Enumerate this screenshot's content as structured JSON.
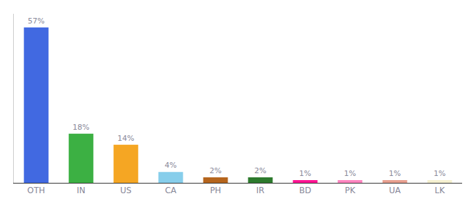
{
  "chart_data": {
    "type": "bar",
    "categories": [
      "OTH",
      "IN",
      "US",
      "CA",
      "PH",
      "IR",
      "BD",
      "PK",
      "UA",
      "LK"
    ],
    "values": [
      57,
      18,
      14,
      4,
      2,
      2,
      1,
      1,
      1,
      1
    ],
    "value_labels": [
      "57%",
      "18%",
      "14%",
      "4%",
      "2%",
      "2%",
      "1%",
      "1%",
      "1%",
      "1%"
    ],
    "colors": [
      "#4169e1",
      "#3cb043",
      "#f5a623",
      "#87ceeb",
      "#b5651d",
      "#2d7a2d",
      "#ff1493",
      "#ff85c0",
      "#e8a090",
      "#f5f0d0"
    ],
    "ylim": [
      0,
      62
    ],
    "data_labels": true,
    "tick_labels": "x",
    "grid": false
  }
}
